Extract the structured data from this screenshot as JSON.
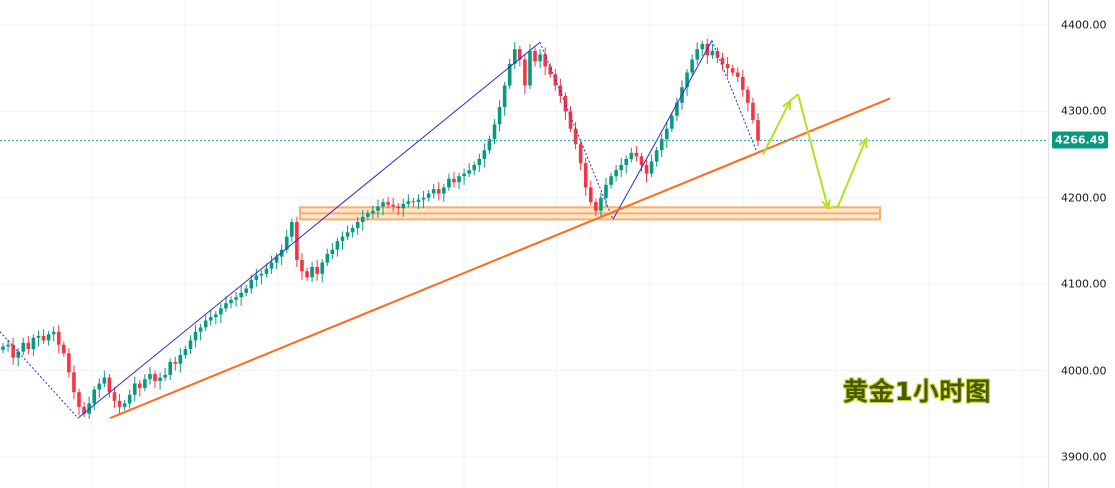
{
  "chart_data": {
    "type": "candlestick",
    "title": "黄金1小时图",
    "ylim": [
      3880,
      4425
    ],
    "y_ticks": [
      "4400.00",
      "4300.00",
      "4200.00",
      "4100.00",
      "4000.00",
      "3900.00"
    ],
    "current_price": "4266.49",
    "grid": true,
    "colors": {
      "up": "#089981",
      "down": "#f23645",
      "trend": "#ff6a1a",
      "swing": "#2b2bd6",
      "zone": "#f5b06b",
      "projection": "#b7e023",
      "current": "#22a7a0"
    },
    "support_zone": {
      "top": 4189,
      "bottom": 4175
    },
    "trendline": {
      "from": {
        "x": 110,
        "y": 3945
      },
      "to": {
        "x": 890,
        "y": 4315
      }
    },
    "swing_points": [
      {
        "x": 0,
        "y": 4045
      },
      {
        "x": 78,
        "y": 3945
      },
      {
        "x": 540,
        "y": 4380
      },
      {
        "x": 613,
        "y": 4175
      },
      {
        "x": 712,
        "y": 4382
      },
      {
        "x": 758,
        "y": 4250
      }
    ],
    "swing_solid_segments": [
      [
        1,
        2
      ],
      [
        3,
        4
      ]
    ],
    "projection_path": [
      {
        "x": 763,
        "y": 4250
      },
      {
        "x": 790,
        "y": 4312
      },
      {
        "x": 798,
        "y": 4320
      },
      {
        "x": 828,
        "y": 4188
      },
      {
        "x": 838,
        "y": 4190
      },
      {
        "x": 866,
        "y": 4268
      }
    ],
    "closes": [
      4028,
      4030,
      4015,
      4022,
      4032,
      4025,
      4038,
      4040,
      4035,
      4042,
      4045,
      4030,
      4020,
      3998,
      3975,
      3958,
      3950,
      3962,
      3978,
      3985,
      3992,
      3975,
      3965,
      3958,
      3962,
      3972,
      3985,
      3980,
      3990,
      3996,
      3988,
      3992,
      3995,
      4010,
      4008,
      4018,
      4025,
      4035,
      4045,
      4050,
      4058,
      4062,
      4065,
      4072,
      4078,
      4082,
      4085,
      4090,
      4095,
      4105,
      4110,
      4112,
      4118,
      4125,
      4132,
      4140,
      4155,
      4172,
      4128,
      4115,
      4108,
      4120,
      4112,
      4125,
      4135,
      4140,
      4150,
      4155,
      4160,
      4165,
      4172,
      4178,
      4182,
      4185,
      4190,
      4195,
      4192,
      4190,
      4188,
      4193,
      4196,
      4195,
      4198,
      4200,
      4205,
      4210,
      4205,
      4212,
      4222,
      4218,
      4225,
      4228,
      4232,
      4238,
      4245,
      4255,
      4268,
      4285,
      4305,
      4330,
      4355,
      4372,
      4360,
      4330,
      4370,
      4358,
      4366,
      4352,
      4343,
      4330,
      4318,
      4300,
      4280,
      4262,
      4240,
      4212,
      4195,
      4185,
      4200,
      4215,
      4225,
      4232,
      4238,
      4245,
      4252,
      4248,
      4238,
      4228,
      4242,
      4255,
      4268,
      4280,
      4295,
      4310,
      4328,
      4345,
      4360,
      4372,
      4378,
      4365,
      4370,
      4362,
      4355,
      4350,
      4345,
      4340,
      4325,
      4310,
      4290,
      4266
    ]
  }
}
